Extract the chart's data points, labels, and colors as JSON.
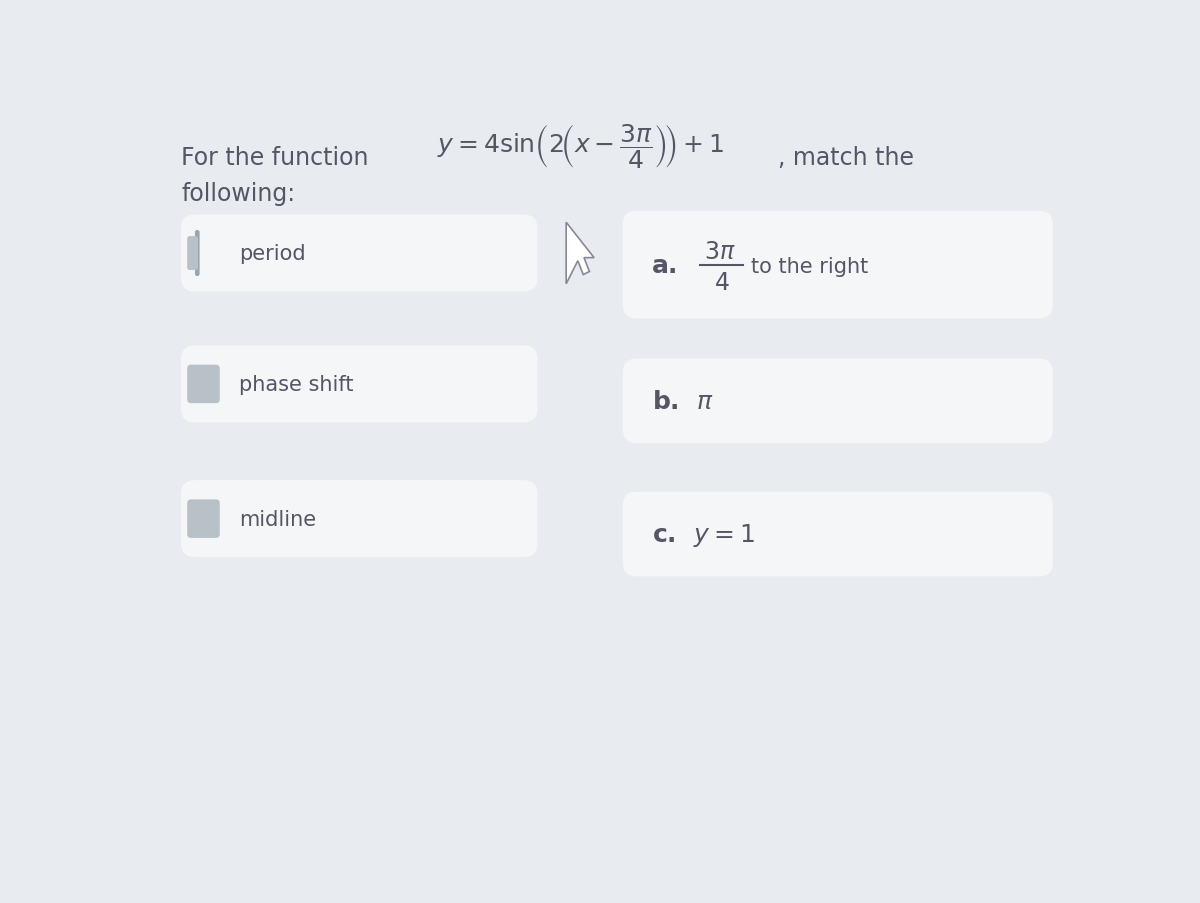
{
  "background_color": "#e8ecf0",
  "card_left_bg": "#f5f6f8",
  "card_right_bg": "#f5f6f8",
  "text_color": "#555566",
  "title_text1": "For the function",
  "title_match": ", match the",
  "title_following": "following:",
  "left_items": [
    "period",
    "phase shift",
    "midline"
  ],
  "right_label_a": "a.",
  "right_label_b": "b.",
  "right_label_c": "c.",
  "right_frac_num": "3\\pi",
  "right_frac_den": "4",
  "right_suffix_a": "to the right",
  "right_item_b": "\\pi",
  "right_item_c": "y=1",
  "font_size_title": 17,
  "font_size_items": 15,
  "font_size_formula": 18,
  "font_size_labels": 16,
  "indicator_bar_color": "#9aa5b0",
  "indicator_sq_color": "#b8c0c8"
}
